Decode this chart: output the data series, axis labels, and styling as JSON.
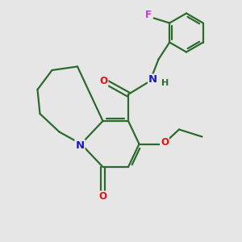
{
  "bg_color": "#e6e6e6",
  "bond_color": "#2d6b2d",
  "bond_width": 1.6,
  "atom_colors": {
    "O": "#e81010",
    "N": "#1a1acc",
    "F": "#cc33cc",
    "H": "#2d6b2d"
  },
  "font_size": 8.5,
  "fig_size": [
    3.0,
    3.0
  ],
  "dpi": 100
}
